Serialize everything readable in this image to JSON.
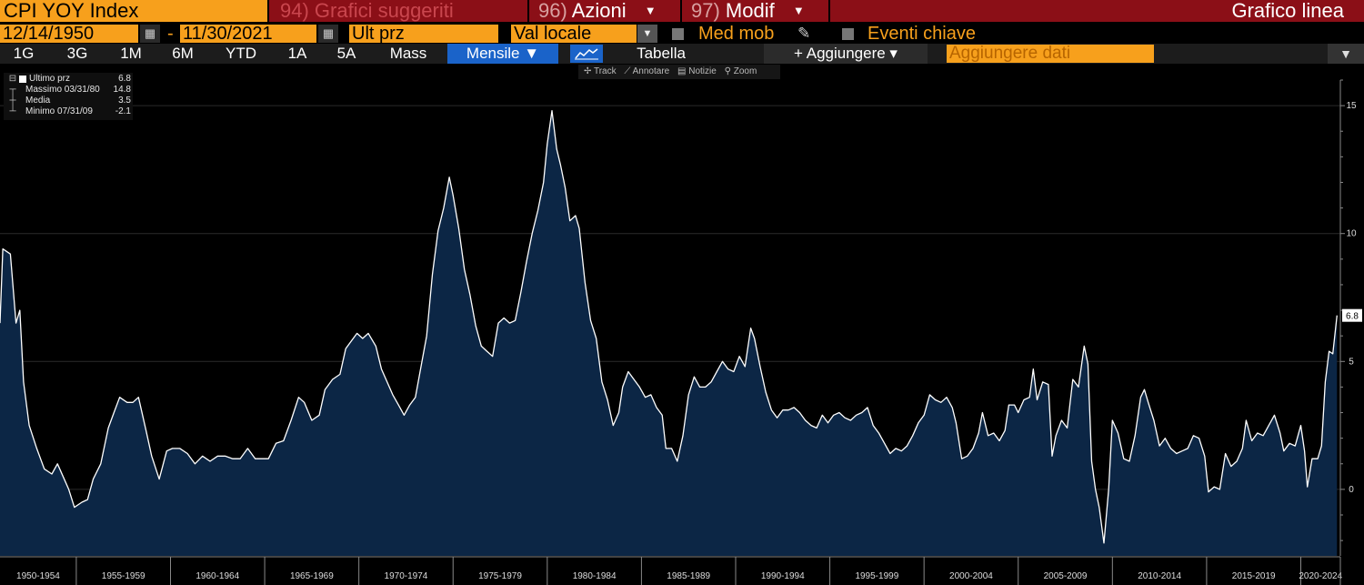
{
  "header": {
    "ticker": "CPI YOY Index",
    "menus": [
      {
        "num": "94)",
        "label": "Grafici suggeriti",
        "dim": true,
        "caret": false
      },
      {
        "num": "96)",
        "label": "Azioni",
        "dim": false,
        "caret": true
      },
      {
        "num": "97)",
        "label": "Modif",
        "dim": false,
        "caret": true
      }
    ],
    "chart_type": "Grafico linea"
  },
  "range": {
    "start": "12/14/1950",
    "dash": "-",
    "end": "11/30/2021",
    "field": "Ult prz",
    "currency": "Val locale",
    "moving_avg": "Med mob",
    "key_events": "Eventi chiave"
  },
  "toolbar": {
    "periods": [
      "1G",
      "3G",
      "1M",
      "6M",
      "YTD",
      "1A",
      "5A",
      "Mass"
    ],
    "frequency": "Mensile ▼",
    "table": "Tabella",
    "add": "+ Aggiungere ▾",
    "add_data_placeholder": "Aggiungere dati"
  },
  "tools": [
    "Track",
    "Annotare",
    "Notizie",
    "Zoom"
  ],
  "legend": {
    "rows": [
      {
        "label": "Ultimo prz",
        "value": "6.8"
      },
      {
        "label": "Massimo 03/31/80",
        "value": "14.8"
      },
      {
        "label": "Media",
        "value": "3.5"
      },
      {
        "label": "Minimo 07/31/09",
        "value": "-2.1"
      }
    ]
  },
  "colors": {
    "accent": "#f7a01c",
    "header_red": "#8b0f17",
    "area_fill": "#0c2645",
    "line": "#ffffff",
    "active_blue": "#1a63c9"
  },
  "chart_data": {
    "type": "area",
    "title": "",
    "xlabel": "",
    "ylabel": "",
    "y_ticks": [
      0,
      5,
      10,
      15
    ],
    "ylim": [
      -2.6,
      16
    ],
    "xlim": [
      1950.95,
      2022.1
    ],
    "x_tick_labels": [
      "1950-1954",
      "1955-1959",
      "1960-1964",
      "1965-1969",
      "1970-1974",
      "1975-1979",
      "1980-1984",
      "1985-1989",
      "1990-1994",
      "1995-1999",
      "2000-2004",
      "2005-2009",
      "2010-2014",
      "2015-2019",
      "2020-2024"
    ],
    "last_value_label": "6.8",
    "series": [
      {
        "values": [
          [
            1950.95,
            6.5
          ],
          [
            1951.1,
            9.4
          ],
          [
            1951.5,
            9.2
          ],
          [
            1951.8,
            6.5
          ],
          [
            1952.0,
            7.0
          ],
          [
            1952.2,
            4.2
          ],
          [
            1952.5,
            2.5
          ],
          [
            1952.9,
            1.6
          ],
          [
            1953.3,
            0.8
          ],
          [
            1953.7,
            0.6
          ],
          [
            1954.0,
            1.0
          ],
          [
            1954.3,
            0.5
          ],
          [
            1954.6,
            0.0
          ],
          [
            1954.9,
            -0.7
          ],
          [
            1955.3,
            -0.5
          ],
          [
            1955.6,
            -0.4
          ],
          [
            1955.9,
            0.4
          ],
          [
            1956.3,
            1.0
          ],
          [
            1956.7,
            2.4
          ],
          [
            1957.0,
            3.0
          ],
          [
            1957.3,
            3.6
          ],
          [
            1957.7,
            3.4
          ],
          [
            1958.0,
            3.4
          ],
          [
            1958.3,
            3.6
          ],
          [
            1958.7,
            2.3
          ],
          [
            1959.0,
            1.3
          ],
          [
            1959.4,
            0.4
          ],
          [
            1959.8,
            1.5
          ],
          [
            1960.1,
            1.6
          ],
          [
            1960.5,
            1.6
          ],
          [
            1960.9,
            1.4
          ],
          [
            1961.3,
            1.0
          ],
          [
            1961.7,
            1.3
          ],
          [
            1962.1,
            1.1
          ],
          [
            1962.5,
            1.3
          ],
          [
            1962.9,
            1.3
          ],
          [
            1963.3,
            1.2
          ],
          [
            1963.7,
            1.2
          ],
          [
            1964.1,
            1.6
          ],
          [
            1964.5,
            1.2
          ],
          [
            1964.9,
            1.2
          ],
          [
            1965.2,
            1.2
          ],
          [
            1965.6,
            1.8
          ],
          [
            1966.0,
            1.9
          ],
          [
            1966.4,
            2.7
          ],
          [
            1966.8,
            3.6
          ],
          [
            1967.1,
            3.4
          ],
          [
            1967.5,
            2.7
          ],
          [
            1967.9,
            2.9
          ],
          [
            1968.2,
            3.9
          ],
          [
            1968.6,
            4.3
          ],
          [
            1969.0,
            4.5
          ],
          [
            1969.3,
            5.5
          ],
          [
            1969.6,
            5.8
          ],
          [
            1969.9,
            6.1
          ],
          [
            1970.2,
            5.9
          ],
          [
            1970.5,
            6.1
          ],
          [
            1970.9,
            5.6
          ],
          [
            1971.2,
            4.7
          ],
          [
            1971.5,
            4.2
          ],
          [
            1971.8,
            3.7
          ],
          [
            1972.1,
            3.3
          ],
          [
            1972.4,
            2.9
          ],
          [
            1972.7,
            3.3
          ],
          [
            1973.0,
            3.6
          ],
          [
            1973.3,
            4.8
          ],
          [
            1973.6,
            6.0
          ],
          [
            1973.9,
            8.4
          ],
          [
            1974.2,
            10.1
          ],
          [
            1974.5,
            11.0
          ],
          [
            1974.8,
            12.2
          ],
          [
            1975.0,
            11.5
          ],
          [
            1975.3,
            10.2
          ],
          [
            1975.6,
            8.6
          ],
          [
            1975.9,
            7.6
          ],
          [
            1976.2,
            6.4
          ],
          [
            1976.5,
            5.6
          ],
          [
            1976.8,
            5.4
          ],
          [
            1977.1,
            5.2
          ],
          [
            1977.4,
            6.5
          ],
          [
            1977.7,
            6.7
          ],
          [
            1978.0,
            6.5
          ],
          [
            1978.3,
            6.6
          ],
          [
            1978.6,
            7.7
          ],
          [
            1978.9,
            8.9
          ],
          [
            1979.2,
            10.0
          ],
          [
            1979.5,
            10.9
          ],
          [
            1979.8,
            12.0
          ],
          [
            1980.0,
            13.5
          ],
          [
            1980.25,
            14.8
          ],
          [
            1980.5,
            13.3
          ],
          [
            1980.7,
            12.7
          ],
          [
            1980.95,
            11.8
          ],
          [
            1981.2,
            10.5
          ],
          [
            1981.5,
            10.7
          ],
          [
            1981.7,
            10.2
          ],
          [
            1982.0,
            8.1
          ],
          [
            1982.3,
            6.6
          ],
          [
            1982.6,
            5.9
          ],
          [
            1982.9,
            4.2
          ],
          [
            1983.2,
            3.5
          ],
          [
            1983.5,
            2.5
          ],
          [
            1983.8,
            3.0
          ],
          [
            1984.0,
            4.0
          ],
          [
            1984.3,
            4.6
          ],
          [
            1984.6,
            4.3
          ],
          [
            1984.9,
            4.0
          ],
          [
            1985.2,
            3.6
          ],
          [
            1985.5,
            3.7
          ],
          [
            1985.8,
            3.2
          ],
          [
            1986.1,
            2.9
          ],
          [
            1986.3,
            1.6
          ],
          [
            1986.6,
            1.6
          ],
          [
            1986.9,
            1.1
          ],
          [
            1987.2,
            2.1
          ],
          [
            1987.5,
            3.7
          ],
          [
            1987.8,
            4.4
          ],
          [
            1988.1,
            4.0
          ],
          [
            1988.4,
            4.0
          ],
          [
            1988.7,
            4.2
          ],
          [
            1989.0,
            4.6
          ],
          [
            1989.3,
            5.0
          ],
          [
            1989.6,
            4.7
          ],
          [
            1989.9,
            4.6
          ],
          [
            1990.2,
            5.2
          ],
          [
            1990.5,
            4.8
          ],
          [
            1990.8,
            6.3
          ],
          [
            1991.0,
            5.9
          ],
          [
            1991.3,
            4.8
          ],
          [
            1991.6,
            3.8
          ],
          [
            1991.9,
            3.1
          ],
          [
            1992.2,
            2.8
          ],
          [
            1992.5,
            3.1
          ],
          [
            1992.8,
            3.1
          ],
          [
            1993.1,
            3.2
          ],
          [
            1993.4,
            3.0
          ],
          [
            1993.7,
            2.7
          ],
          [
            1994.0,
            2.5
          ],
          [
            1994.3,
            2.4
          ],
          [
            1994.6,
            2.9
          ],
          [
            1994.9,
            2.6
          ],
          [
            1995.2,
            2.9
          ],
          [
            1995.5,
            3.0
          ],
          [
            1995.8,
            2.8
          ],
          [
            1996.1,
            2.7
          ],
          [
            1996.4,
            2.9
          ],
          [
            1996.7,
            3.0
          ],
          [
            1997.0,
            3.2
          ],
          [
            1997.3,
            2.5
          ],
          [
            1997.6,
            2.2
          ],
          [
            1997.9,
            1.8
          ],
          [
            1998.2,
            1.4
          ],
          [
            1998.5,
            1.6
          ],
          [
            1998.8,
            1.5
          ],
          [
            1999.1,
            1.7
          ],
          [
            1999.4,
            2.1
          ],
          [
            1999.7,
            2.6
          ],
          [
            2000.0,
            2.9
          ],
          [
            2000.3,
            3.7
          ],
          [
            2000.6,
            3.5
          ],
          [
            2000.9,
            3.4
          ],
          [
            2001.2,
            3.6
          ],
          [
            2001.5,
            3.2
          ],
          [
            2001.7,
            2.6
          ],
          [
            2002.0,
            1.2
          ],
          [
            2002.3,
            1.3
          ],
          [
            2002.6,
            1.6
          ],
          [
            2002.9,
            2.2
          ],
          [
            2003.1,
            3.0
          ],
          [
            2003.4,
            2.1
          ],
          [
            2003.7,
            2.2
          ],
          [
            2004.0,
            1.9
          ],
          [
            2004.3,
            2.3
          ],
          [
            2004.5,
            3.3
          ],
          [
            2004.8,
            3.3
          ],
          [
            2005.0,
            3.0
          ],
          [
            2005.3,
            3.5
          ],
          [
            2005.6,
            3.6
          ],
          [
            2005.8,
            4.7
          ],
          [
            2006.0,
            3.5
          ],
          [
            2006.3,
            4.2
          ],
          [
            2006.6,
            4.1
          ],
          [
            2006.8,
            1.3
          ],
          [
            2007.0,
            2.1
          ],
          [
            2007.3,
            2.7
          ],
          [
            2007.6,
            2.4
          ],
          [
            2007.9,
            4.3
          ],
          [
            2008.2,
            4.0
          ],
          [
            2008.5,
            5.6
          ],
          [
            2008.7,
            4.9
          ],
          [
            2008.9,
            1.1
          ],
          [
            2009.1,
            0.0
          ],
          [
            2009.3,
            -0.7
          ],
          [
            2009.55,
            -2.1
          ],
          [
            2009.8,
            0.0
          ],
          [
            2010.0,
            2.7
          ],
          [
            2010.3,
            2.2
          ],
          [
            2010.6,
            1.2
          ],
          [
            2010.9,
            1.1
          ],
          [
            2011.2,
            2.1
          ],
          [
            2011.5,
            3.6
          ],
          [
            2011.7,
            3.9
          ],
          [
            2011.9,
            3.4
          ],
          [
            2012.2,
            2.7
          ],
          [
            2012.5,
            1.7
          ],
          [
            2012.8,
            2.0
          ],
          [
            2013.1,
            1.6
          ],
          [
            2013.4,
            1.4
          ],
          [
            2013.7,
            1.5
          ],
          [
            2014.0,
            1.6
          ],
          [
            2014.3,
            2.1
          ],
          [
            2014.6,
            2.0
          ],
          [
            2014.9,
            1.3
          ],
          [
            2015.1,
            -0.1
          ],
          [
            2015.4,
            0.1
          ],
          [
            2015.7,
            0.0
          ],
          [
            2016.0,
            1.4
          ],
          [
            2016.3,
            0.9
          ],
          [
            2016.6,
            1.1
          ],
          [
            2016.9,
            1.6
          ],
          [
            2017.1,
            2.7
          ],
          [
            2017.4,
            1.9
          ],
          [
            2017.7,
            2.2
          ],
          [
            2018.0,
            2.1
          ],
          [
            2018.3,
            2.5
          ],
          [
            2018.6,
            2.9
          ],
          [
            2018.9,
            2.2
          ],
          [
            2019.1,
            1.5
          ],
          [
            2019.4,
            1.8
          ],
          [
            2019.7,
            1.7
          ],
          [
            2020.0,
            2.5
          ],
          [
            2020.2,
            1.5
          ],
          [
            2020.35,
            0.1
          ],
          [
            2020.6,
            1.2
          ],
          [
            2020.9,
            1.2
          ],
          [
            2021.1,
            1.7
          ],
          [
            2021.3,
            4.2
          ],
          [
            2021.5,
            5.4
          ],
          [
            2021.7,
            5.3
          ],
          [
            2021.92,
            6.8
          ]
        ]
      }
    ]
  }
}
